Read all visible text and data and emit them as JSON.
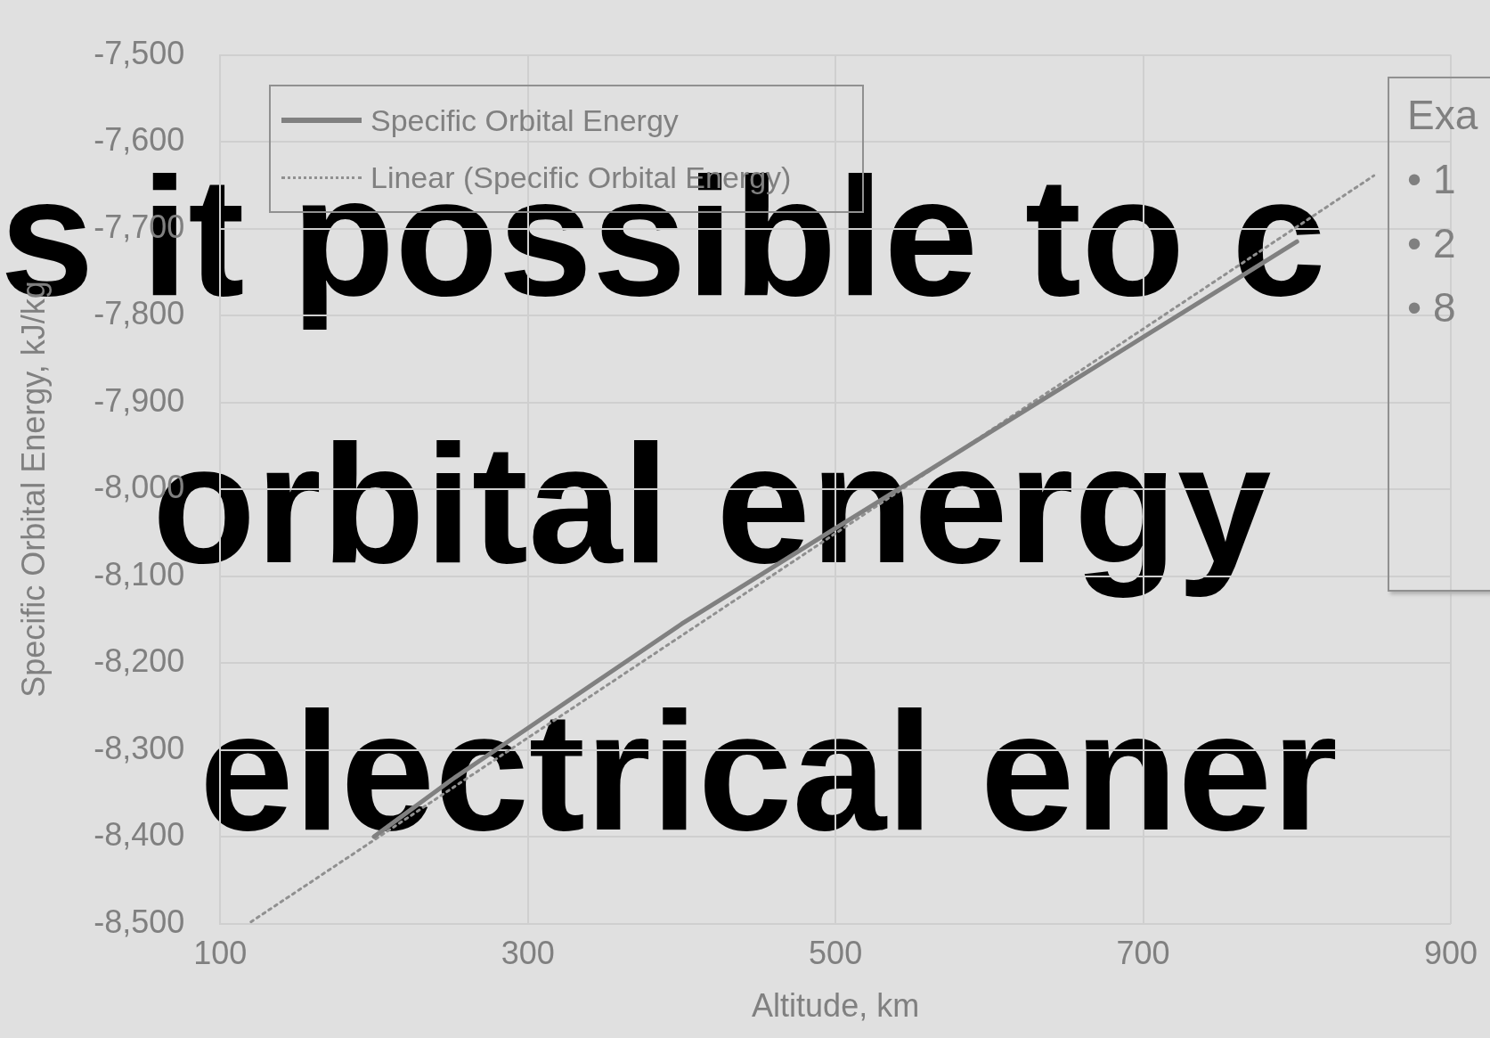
{
  "chart_data": {
    "type": "line",
    "xlabel": "Altitude, km",
    "ylabel": "Specific Orbital Energy, kJ/kg",
    "xlim": [
      100,
      900
    ],
    "xticks": [
      100,
      300,
      500,
      700,
      900
    ],
    "ylim": [
      -8500,
      -7500
    ],
    "yticks": [
      {
        "value": -8500,
        "label": "-8,500"
      },
      {
        "value": -8400,
        "label": "-8,400"
      },
      {
        "value": -8300,
        "label": "-8,300"
      },
      {
        "value": -8200,
        "label": "-8,200"
      },
      {
        "value": -8100,
        "label": "-8,100"
      },
      {
        "value": -8000,
        "label": "-8,000"
      },
      {
        "value": -7900,
        "label": "-7,900"
      },
      {
        "value": -7800,
        "label": "-7,800"
      },
      {
        "value": -7700,
        "label": "-7,700"
      },
      {
        "value": -7600,
        "label": "-7,600"
      },
      {
        "value": -7500,
        "label": "-7,500"
      }
    ],
    "grid": true,
    "legend": "top left",
    "marker": "none",
    "series": [
      {
        "name": "Specific Orbital Energy",
        "color": "#808080",
        "line_style": "solid",
        "x": [
          200,
          250,
          300,
          350,
          400,
          450,
          500,
          550,
          600,
          650,
          700,
          750,
          800
        ],
        "values": [
          -8400,
          -8335,
          -8275,
          -8215,
          -8155,
          -8100,
          -8045,
          -7990,
          -7935,
          -7880,
          -7825,
          -7770,
          -7715
        ]
      },
      {
        "name": "Linear (Specific Orbital Energy)",
        "color": "#909090",
        "line_style": "dotted",
        "type": "line",
        "x": [
          120,
          850
        ],
        "values": [
          -8498,
          -7639
        ]
      }
    ],
    "annotations": [
      "Exa",
      "• 1",
      "• 2",
      "• 8",
      "s it possible to c",
      "orbital energy",
      "electrical ener"
    ]
  }
}
